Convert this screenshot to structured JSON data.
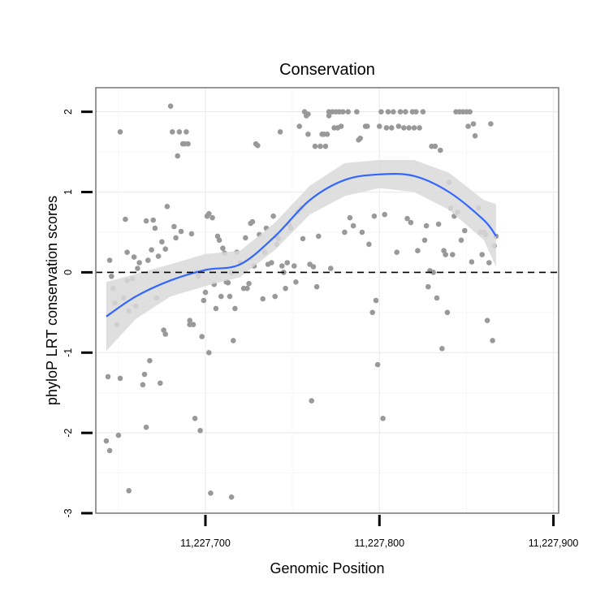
{
  "chart_data": {
    "type": "scatter",
    "title": "Conservation",
    "xlabel": "Genomic Position",
    "ylabel": "phyloP LRT conservation scores",
    "xlim": [
      11227637,
      11227903
    ],
    "ylim": [
      -3,
      2.3
    ],
    "x_ticks": [
      11227700,
      11227800,
      11227900
    ],
    "x_tick_labels": [
      "11,227,700",
      "11,227,800",
      "11,227,900"
    ],
    "y_ticks": [
      -3,
      -2,
      -1,
      0,
      1,
      2
    ],
    "y_tick_labels": [
      "-3",
      "-2",
      "-1",
      "0",
      "1",
      "2"
    ],
    "reference_line": {
      "y": 0,
      "style": "dashed"
    },
    "grid": true,
    "colors": {
      "points": "#999999",
      "smooth": "#3366FF",
      "ribbon": "#D9D9D9",
      "panel_border": "#7F7F7F"
    },
    "points": [
      [
        11227645,
        0.15
      ],
      [
        11227646,
        -0.05
      ],
      [
        11227647,
        -0.2
      ],
      [
        11227648,
        -0.38
      ],
      [
        11227649,
        -0.65
      ],
      [
        11227644,
        -1.3
      ],
      [
        11227645,
        -2.22
      ],
      [
        11227643,
        -2.1
      ],
      [
        11227650,
        -2.03
      ],
      [
        11227651,
        -1.32
      ],
      [
        11227651,
        1.75
      ],
      [
        11227653,
        -0.32
      ],
      [
        11227654,
        0.66
      ],
      [
        11227655,
        0.25
      ],
      [
        11227655,
        -0.1
      ],
      [
        11227656,
        -0.48
      ],
      [
        11227656,
        -2.72
      ],
      [
        11227658,
        -0.08
      ],
      [
        11227659,
        0.19
      ],
      [
        11227660,
        -0.42
      ],
      [
        11227661,
        0.05
      ],
      [
        11227662,
        0.12
      ],
      [
        11227664,
        -1.4
      ],
      [
        11227665,
        -1.27
      ],
      [
        11227666,
        0.64
      ],
      [
        11227666,
        -1.93
      ],
      [
        11227667,
        0.15
      ],
      [
        11227668,
        -1.1
      ],
      [
        11227669,
        0.28
      ],
      [
        11227670,
        0.65
      ],
      [
        11227671,
        0.55
      ],
      [
        11227672,
        -0.32
      ],
      [
        11227673,
        0.2
      ],
      [
        11227674,
        -1.38
      ],
      [
        11227675,
        0.38
      ],
      [
        11227676,
        -0.72
      ],
      [
        11227677,
        -0.77
      ],
      [
        11227677,
        0.29
      ],
      [
        11227678,
        0.82
      ],
      [
        11227680,
        2.07
      ],
      [
        11227681,
        1.75
      ],
      [
        11227682,
        0.57
      ],
      [
        11227683,
        0.43
      ],
      [
        11227684,
        1.45
      ],
      [
        11227685,
        1.75
      ],
      [
        11227686,
        0.51
      ],
      [
        11227687,
        1.6
      ],
      [
        11227688,
        1.6
      ],
      [
        11227689,
        1.75
      ],
      [
        11227690,
        1.6
      ],
      [
        11227691,
        -0.6
      ],
      [
        11227691,
        -0.65
      ],
      [
        11227692,
        0.48
      ],
      [
        11227693,
        -0.65
      ],
      [
        11227694,
        -1.82
      ],
      [
        11227695,
        0.0
      ],
      [
        11227696,
        -0.05
      ],
      [
        11227697,
        -1.97
      ],
      [
        11227698,
        -0.8
      ],
      [
        11227699,
        -0.35
      ],
      [
        11227700,
        -0.25
      ],
      [
        11227701,
        0.7
      ],
      [
        11227702,
        0.73
      ],
      [
        11227702,
        -1.0
      ],
      [
        11227703,
        -2.75
      ],
      [
        11227704,
        0.68
      ],
      [
        11227705,
        -0.15
      ],
      [
        11227706,
        -0.45
      ],
      [
        11227707,
        0.45
      ],
      [
        11227708,
        0.4
      ],
      [
        11227709,
        -0.3
      ],
      [
        11227710,
        0.3
      ],
      [
        11227711,
        0.24
      ],
      [
        11227712,
        -0.12
      ],
      [
        11227713,
        -0.13
      ],
      [
        11227714,
        -0.3
      ],
      [
        11227715,
        -2.8
      ],
      [
        11227715,
        0.0
      ],
      [
        11227716,
        -0.85
      ],
      [
        11227717,
        -0.45
      ],
      [
        11227718,
        0.25
      ],
      [
        11227720,
        0.12
      ],
      [
        11227722,
        -0.2
      ],
      [
        11227723,
        0.43
      ],
      [
        11227724,
        -0.2
      ],
      [
        11227725,
        -0.14
      ],
      [
        11227726,
        0.61
      ],
      [
        11227727,
        0.63
      ],
      [
        11227728,
        0.08
      ],
      [
        11227729,
        1.6
      ],
      [
        11227730,
        1.58
      ],
      [
        11227731,
        0.47
      ],
      [
        11227733,
        -0.33
      ],
      [
        11227734,
        0.25
      ],
      [
        11227735,
        0.55
      ],
      [
        11227736,
        0.1
      ],
      [
        11227738,
        0.12
      ],
      [
        11227739,
        0.7
      ],
      [
        11227740,
        -0.3
      ],
      [
        11227741,
        0.35
      ],
      [
        11227741,
        0.45
      ],
      [
        11227742,
        0.42
      ],
      [
        11227743,
        1.75
      ],
      [
        11227744,
        0.08
      ],
      [
        11227745,
        0.0
      ],
      [
        11227746,
        -0.2
      ],
      [
        11227747,
        0.12
      ],
      [
        11227748,
        0.6
      ],
      [
        11227749,
        0.55
      ],
      [
        11227751,
        0.08
      ],
      [
        11227752,
        -0.12
      ],
      [
        11227753,
        0.75
      ],
      [
        11227754,
        1.82
      ],
      [
        11227755,
        0.8
      ],
      [
        11227756,
        0.42
      ],
      [
        11227757,
        2.0
      ],
      [
        11227758,
        1.95
      ],
      [
        11227759,
        1.97
      ],
      [
        11227759,
        1.72
      ],
      [
        11227760,
        0.1
      ],
      [
        11227761,
        -1.6
      ],
      [
        11227762,
        0.07
      ],
      [
        11227763,
        1.57
      ],
      [
        11227764,
        -0.18
      ],
      [
        11227765,
        0.45
      ],
      [
        11227766,
        1.57
      ],
      [
        11227767,
        1.72
      ],
      [
        11227768,
        1.72
      ],
      [
        11227769,
        1.57
      ],
      [
        11227770,
        1.72
      ],
      [
        11227771,
        2.0
      ],
      [
        11227771,
        1.95
      ],
      [
        11227772,
        0.05
      ],
      [
        11227773,
        2.0
      ],
      [
        11227774,
        1.8
      ],
      [
        11227775,
        2.0
      ],
      [
        11227776,
        1.8
      ],
      [
        11227777,
        2.0
      ],
      [
        11227778,
        1.82
      ],
      [
        11227779,
        2.0
      ],
      [
        11227780,
        0.5
      ],
      [
        11227782,
        2.0
      ],
      [
        11227783,
        0.68
      ],
      [
        11227785,
        0.58
      ],
      [
        11227787,
        2.0
      ],
      [
        11227788,
        1.65
      ],
      [
        11227789,
        1.67
      ],
      [
        11227790,
        0.5
      ],
      [
        11227792,
        1.82
      ],
      [
        11227793,
        1.82
      ],
      [
        11227794,
        0.35
      ],
      [
        11227796,
        -0.5
      ],
      [
        11227797,
        0.7
      ],
      [
        11227798,
        -0.35
      ],
      [
        11227799,
        -1.15
      ],
      [
        11227800,
        1.82
      ],
      [
        11227801,
        2.0
      ],
      [
        11227802,
        -1.82
      ],
      [
        11227803,
        0.72
      ],
      [
        11227804,
        1.8
      ],
      [
        11227805,
        2.0
      ],
      [
        11227807,
        1.8
      ],
      [
        11227808,
        2.0
      ],
      [
        11227810,
        0.25
      ],
      [
        11227811,
        1.82
      ],
      [
        11227812,
        2.0
      ],
      [
        11227814,
        1.8
      ],
      [
        11227815,
        2.0
      ],
      [
        11227816,
        0.67
      ],
      [
        11227817,
        1.8
      ],
      [
        11227818,
        0.62
      ],
      [
        11227819,
        2.0
      ],
      [
        11227820,
        1.8
      ],
      [
        11227821,
        2.0
      ],
      [
        11227822,
        0.27
      ],
      [
        11227823,
        1.8
      ],
      [
        11227825,
        2.0
      ],
      [
        11227826,
        0.4
      ],
      [
        11227827,
        0.58
      ],
      [
        11227828,
        -0.18
      ],
      [
        11227829,
        0.02
      ],
      [
        11227830,
        1.57
      ],
      [
        11227831,
        0.0
      ],
      [
        11227832,
        1.57
      ],
      [
        11227833,
        -0.32
      ],
      [
        11227834,
        0.6
      ],
      [
        11227835,
        1.52
      ],
      [
        11227836,
        -0.95
      ],
      [
        11227837,
        0.27
      ],
      [
        11227838,
        0.22
      ],
      [
        11227839,
        -0.5
      ],
      [
        11227840,
        1.12
      ],
      [
        11227841,
        0.8
      ],
      [
        11227842,
        0.22
      ],
      [
        11227843,
        0.7
      ],
      [
        11227844,
        2.0
      ],
      [
        11227845,
        0.75
      ],
      [
        11227846,
        2.0
      ],
      [
        11227847,
        0.4
      ],
      [
        11227848,
        2.0
      ],
      [
        11227849,
        0.52
      ],
      [
        11227850,
        2.0
      ],
      [
        11227851,
        1.82
      ],
      [
        11227852,
        2.0
      ],
      [
        11227853,
        0.13
      ],
      [
        11227854,
        1.85
      ],
      [
        11227855,
        1.7
      ],
      [
        11227857,
        0.8
      ],
      [
        11227858,
        0.5
      ],
      [
        11227859,
        0.22
      ],
      [
        11227860,
        0.5
      ],
      [
        11227861,
        0.47
      ],
      [
        11227862,
        -0.6
      ],
      [
        11227863,
        0.12
      ],
      [
        11227864,
        1.85
      ],
      [
        11227865,
        -0.85
      ],
      [
        11227866,
        0.33
      ],
      [
        11227867,
        0.45
      ]
    ],
    "smooth": {
      "x": [
        11227643,
        11227660,
        11227680,
        11227700,
        11227720,
        11227740,
        11227760,
        11227780,
        11227800,
        11227820,
        11227840,
        11227860,
        11227867
      ],
      "y": [
        -0.55,
        -0.3,
        -0.1,
        0.03,
        0.1,
        0.45,
        0.9,
        1.15,
        1.22,
        1.2,
        1.0,
        0.65,
        0.45
      ],
      "lower": [
        -0.98,
        -0.58,
        -0.3,
        -0.17,
        -0.06,
        0.28,
        0.72,
        0.95,
        1.05,
        1.0,
        0.78,
        0.4,
        0.07
      ],
      "upper": [
        -0.12,
        -0.02,
        0.1,
        0.23,
        0.27,
        0.62,
        1.08,
        1.36,
        1.4,
        1.4,
        1.24,
        0.9,
        0.85
      ]
    }
  }
}
